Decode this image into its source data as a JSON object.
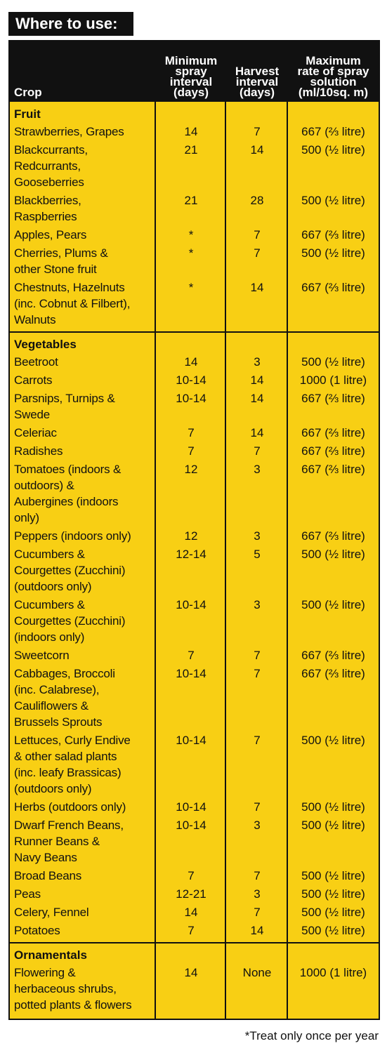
{
  "header": {
    "title": "Where to use:"
  },
  "table": {
    "columns": [
      [
        "Crop"
      ],
      [
        "Minimum",
        "spray",
        "interval",
        "(days)"
      ],
      [
        "Harvest",
        "interval",
        "(days)"
      ],
      [
        "Maximum",
        "rate of spray",
        "solution",
        "(ml/10sq. m)"
      ]
    ],
    "sections": [
      {
        "name": "Fruit",
        "rows": [
          {
            "crop": [
              "Strawberries, Grapes"
            ],
            "min": "14",
            "harvest": "7",
            "max": "667 (⅔ litre)"
          },
          {
            "crop": [
              "Blackcurrants,",
              "Redcurrants,",
              "Gooseberries"
            ],
            "min": "21",
            "harvest": "14",
            "max": "500 (½ litre)"
          },
          {
            "crop": [
              "Blackberries,",
              "Raspberries"
            ],
            "min": "21",
            "harvest": "28",
            "max": "500 (½ litre)"
          },
          {
            "crop": [
              "Apples, Pears"
            ],
            "min": "*",
            "harvest": "7",
            "max": "667 (⅔ litre)"
          },
          {
            "crop": [
              "Cherries, Plums &",
              "other Stone fruit"
            ],
            "min": "*",
            "harvest": "7",
            "max": "500 (½ litre)"
          },
          {
            "crop": [
              "Chestnuts, Hazelnuts",
              "(inc. Cobnut & Filbert),",
              "Walnuts"
            ],
            "min": "*",
            "harvest": "14",
            "max": "667 (⅔ litre)"
          }
        ]
      },
      {
        "name": "Vegetables",
        "rows": [
          {
            "crop": [
              "Beetroot"
            ],
            "min": "14",
            "harvest": "3",
            "max": "500 (½ litre)"
          },
          {
            "crop": [
              "Carrots"
            ],
            "min": "10-14",
            "harvest": "14",
            "max": "1000 (1 litre)"
          },
          {
            "crop": [
              "Parsnips, Turnips &",
              "Swede"
            ],
            "min": "10-14",
            "harvest": "14",
            "max": "667 (⅔ litre)"
          },
          {
            "crop": [
              "Celeriac"
            ],
            "min": "7",
            "harvest": "14",
            "max": "667 (⅔ litre)"
          },
          {
            "crop": [
              "Radishes"
            ],
            "min": "7",
            "harvest": "7",
            "max": "667 (⅔ litre)"
          },
          {
            "crop": [
              "Tomatoes (indoors &",
              "outdoors) &",
              "Aubergines (indoors",
              "only)"
            ],
            "min": "12",
            "harvest": "3",
            "max": "667 (⅔ litre)"
          },
          {
            "crop": [
              "Peppers (indoors only)"
            ],
            "min": "12",
            "harvest": "3",
            "max": "667 (⅔ litre)"
          },
          {
            "crop": [
              "Cucumbers &",
              "Courgettes (Zucchini)",
              "(outdoors only)"
            ],
            "min": "12-14",
            "harvest": "5",
            "max": "500 (½ litre)"
          },
          {
            "crop": [
              "Cucumbers &",
              "Courgettes (Zucchini)",
              "(indoors only)"
            ],
            "min": "10-14",
            "harvest": "3",
            "max": "500 (½ litre)"
          },
          {
            "crop": [
              "Sweetcorn"
            ],
            "min": "7",
            "harvest": "7",
            "max": "667 (⅔ litre)"
          },
          {
            "crop": [
              "Cabbages, Broccoli",
              "(inc. Calabrese),",
              "Cauliflowers &",
              "Brussels Sprouts"
            ],
            "min": "10-14",
            "harvest": "7",
            "max": "667 (⅔ litre)"
          },
          {
            "crop": [
              "Lettuces, Curly Endive",
              "& other salad plants",
              "(inc. leafy Brassicas)",
              "(outdoors only)"
            ],
            "min": "10-14",
            "harvest": "7",
            "max": "500 (½ litre)"
          },
          {
            "crop": [
              "Herbs (outdoors only)"
            ],
            "min": "10-14",
            "harvest": "7",
            "max": "500 (½ litre)"
          },
          {
            "crop": [
              "Dwarf French Beans,",
              "Runner Beans &",
              "Navy Beans"
            ],
            "min": "10-14",
            "harvest": "3",
            "max": "500 (½ litre)"
          },
          {
            "crop": [
              "Broad Beans"
            ],
            "min": "7",
            "harvest": "7",
            "max": "500 (½ litre)"
          },
          {
            "crop": [
              "Peas"
            ],
            "min": "12-21",
            "harvest": "3",
            "max": "500 (½ litre)"
          },
          {
            "crop": [
              "Celery, Fennel"
            ],
            "min": "14",
            "harvest": "7",
            "max": "500 (½ litre)"
          },
          {
            "crop": [
              "Potatoes"
            ],
            "min": "7",
            "harvest": "14",
            "max": "500 (½ litre)"
          }
        ]
      },
      {
        "name": "Ornamentals",
        "rows": [
          {
            "crop": [
              "Flowering &",
              "herbaceous shrubs,",
              "potted plants & flowers"
            ],
            "min": "14",
            "harvest": "None",
            "max": "1000 (1 litre)"
          }
        ]
      }
    ]
  },
  "footnote": "*Treat only once per year"
}
